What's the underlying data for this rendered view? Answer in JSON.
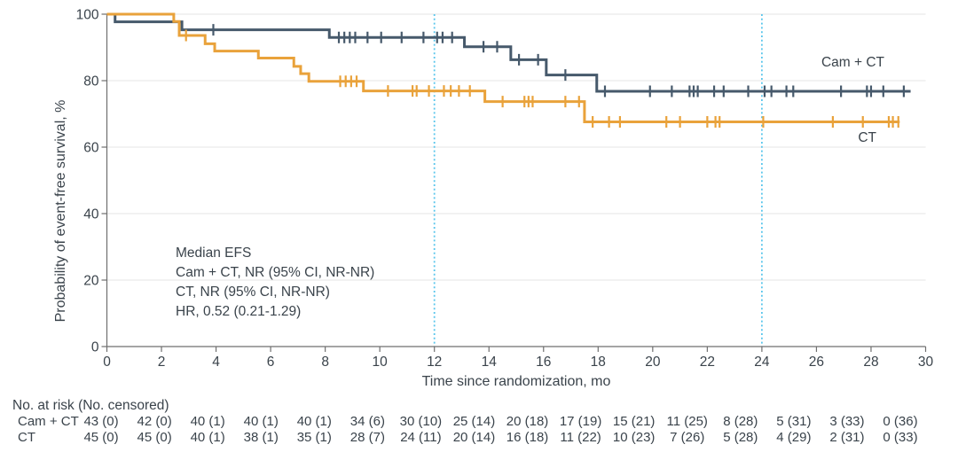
{
  "figure": {
    "kind": "Kaplan-Meier event-free survival plot",
    "background": "#ffffff",
    "text_color": "#3a434b"
  },
  "chart_data": {
    "type": "line",
    "subtype": "kaplan-meier-step",
    "xlabel": "Time since randomization, mo",
    "ylabel": "Probability of event-free survival, %",
    "xlim": [
      0,
      30
    ],
    "ylim": [
      0,
      100
    ],
    "xticks": [
      0,
      2,
      4,
      6,
      8,
      10,
      12,
      14,
      16,
      18,
      20,
      22,
      24,
      26,
      28,
      30
    ],
    "yticks": [
      0,
      20,
      40,
      60,
      80,
      100
    ],
    "grid": "horizontal",
    "grid_color": "#e4e4e4",
    "axis_color": "#6f6f6f",
    "reference_lines_x": [
      12,
      24
    ],
    "reference_line_color": "#5bc6ec",
    "legend_position": "end-of-curve",
    "series": [
      {
        "name": "Cam + CT",
        "color": "#46596b",
        "steps": [
          [
            0,
            100
          ],
          [
            0.3,
            97.7
          ],
          [
            2.75,
            95.3
          ],
          [
            8.15,
            93.0
          ],
          [
            13.1,
            90.2
          ],
          [
            14.8,
            86.3
          ],
          [
            16.1,
            81.7
          ],
          [
            17.95,
            76.8
          ],
          [
            29.45,
            76.8
          ]
        ],
        "censor_times": [
          3.9,
          8.5,
          8.7,
          8.9,
          9.1,
          9.55,
          10.05,
          10.8,
          11.6,
          12.1,
          12.3,
          12.65,
          13.8,
          14.3,
          15.1,
          15.8,
          16.8,
          18.25,
          19.9,
          20.7,
          21.35,
          21.5,
          21.65,
          22.25,
          22.6,
          23.5,
          24.1,
          24.35,
          24.9,
          25.15,
          26.9,
          27.85,
          28.0,
          28.45,
          29.2
        ]
      },
      {
        "name": "CT",
        "color": "#e9a23b",
        "steps": [
          [
            0,
            100
          ],
          [
            2.45,
            97.8
          ],
          [
            2.65,
            93.6
          ],
          [
            3.6,
            91.1
          ],
          [
            3.95,
            88.9
          ],
          [
            5.55,
            86.8
          ],
          [
            6.85,
            84.3
          ],
          [
            7.1,
            82.1
          ],
          [
            7.4,
            79.8
          ],
          [
            9.4,
            76.9
          ],
          [
            13.85,
            73.7
          ],
          [
            17.5,
            67.6
          ],
          [
            29.05,
            67.6
          ]
        ],
        "censor_times": [
          2.9,
          8.55,
          8.75,
          8.95,
          9.15,
          10.3,
          11.2,
          11.35,
          11.8,
          12.35,
          12.6,
          12.9,
          13.3,
          14.5,
          15.3,
          15.45,
          15.6,
          16.8,
          17.3,
          17.8,
          18.4,
          18.8,
          20.5,
          21.0,
          22.0,
          22.3,
          22.45,
          24.05,
          26.6,
          27.7,
          28.65,
          28.8,
          29.0
        ]
      }
    ],
    "annotation_lines": [
      "Median EFS",
      "Cam + CT, NR (95% CI, NR-NR)",
      "CT, NR (95% CI, NR-NR)",
      "HR, 0.52 (0.21-1.29)"
    ]
  },
  "risk_table": {
    "title": "No. at risk (No. censored)",
    "time_points": [
      0,
      2,
      4,
      6,
      8,
      10,
      12,
      14,
      16,
      18,
      20,
      22,
      24,
      26,
      28,
      30
    ],
    "rows": [
      {
        "label": "Cam + CT",
        "values": [
          "43 (0)",
          "42 (0)",
          "40 (1)",
          "40 (1)",
          "40 (1)",
          "34 (6)",
          "30 (10)",
          "25 (14)",
          "20 (18)",
          "17 (19)",
          "15 (21)",
          "11 (25)",
          "8 (28)",
          "5 (31)",
          "3 (33)",
          "0 (36)"
        ]
      },
      {
        "label": "CT",
        "values": [
          "45 (0)",
          "45 (0)",
          "40 (1)",
          "38 (1)",
          "35 (1)",
          "28 (7)",
          "24 (11)",
          "20 (14)",
          "16 (18)",
          "11 (22)",
          "10 (23)",
          "7 (26)",
          "5 (28)",
          "4 (29)",
          "2 (31)",
          "0 (33)"
        ]
      }
    ]
  }
}
